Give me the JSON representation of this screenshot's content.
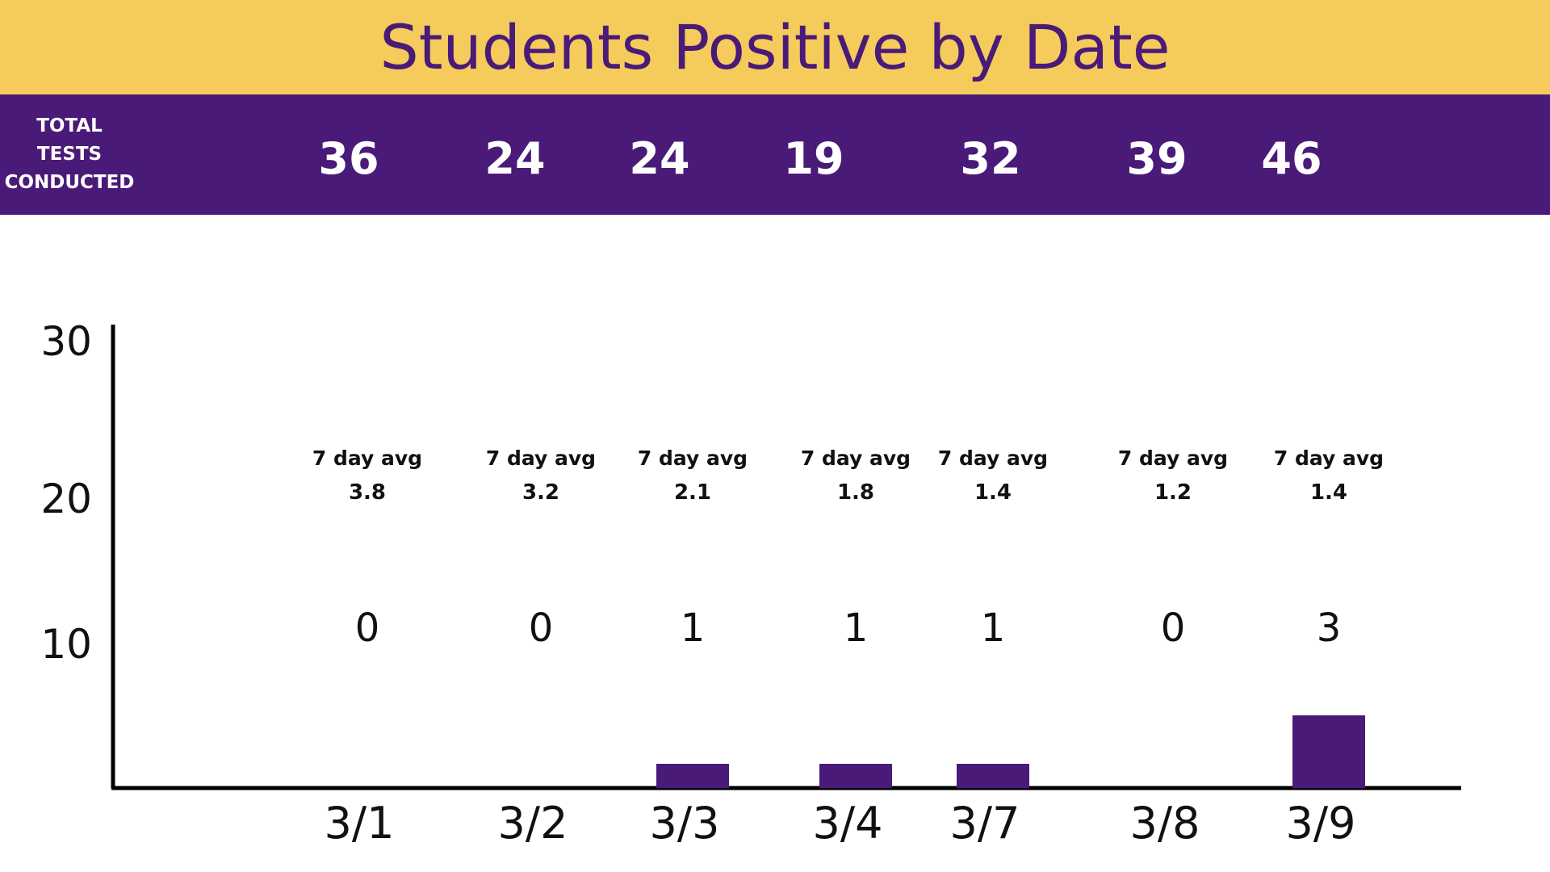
{
  "header": {
    "title": "Students Positive by Date",
    "tests_label_lines": [
      "TOTAL",
      "TESTS",
      "CONDUCTED"
    ]
  },
  "colors": {
    "title_bar": "#F5CB5C",
    "accent_purple": "#4A1A78",
    "axis": "#000000"
  },
  "avg_label": "7 day avg",
  "chart_data": {
    "type": "bar",
    "title": "Students Positive by Date",
    "categories": [
      "3/1",
      "3/2",
      "3/3",
      "3/4",
      "3/7",
      "3/8",
      "3/9"
    ],
    "values": [
      0,
      0,
      1,
      1,
      1,
      0,
      3
    ],
    "tests_conducted": [
      36,
      24,
      24,
      19,
      32,
      39,
      46
    ],
    "seven_day_avg": [
      "3.8",
      "3.2",
      "2.1",
      "1.8",
      "1.4",
      "1.2",
      "1.4"
    ],
    "y_ticks": [
      10,
      20,
      30
    ],
    "ylim": [
      0,
      30
    ],
    "grid": false,
    "legend": "none"
  }
}
